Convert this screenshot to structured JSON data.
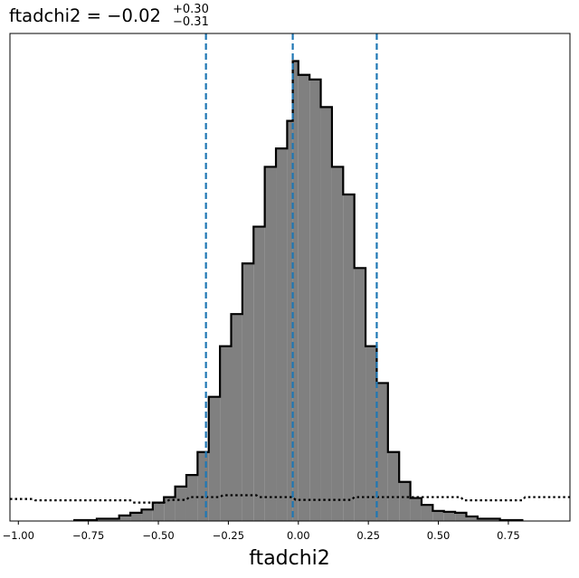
{
  "chart_data": {
    "type": "histogram",
    "title": {
      "prefix": "ftadchi2 = ",
      "value": "−0.02",
      "upper": "+0.30",
      "lower": "−0.31"
    },
    "xlabel": "ftadchi2",
    "ylabel": "",
    "xlim": [
      -1.03,
      0.97
    ],
    "ylim": [
      0,
      1.06
    ],
    "xticks": [
      -1.0,
      -0.75,
      -0.5,
      -0.25,
      0.0,
      0.25,
      0.5,
      0.75
    ],
    "xtick_labels": [
      "−1.00",
      "−0.75",
      "−0.50",
      "−0.25",
      "0.00",
      "0.25",
      "0.50",
      "0.75"
    ],
    "yticks_visible": false,
    "histogram": {
      "bin_edges": [
        -0.8,
        -0.72,
        -0.64,
        -0.6,
        -0.56,
        -0.52,
        -0.48,
        -0.44,
        -0.4,
        -0.36,
        -0.32,
        -0.28,
        -0.24,
        -0.2,
        -0.16,
        -0.12,
        -0.08,
        -0.04,
        -0.02,
        0.0,
        0.04,
        0.08,
        0.12,
        0.16,
        0.2,
        0.24,
        0.28,
        0.32,
        0.36,
        0.4,
        0.44,
        0.48,
        0.52,
        0.56,
        0.6,
        0.64,
        0.72,
        0.8
      ],
      "heights": [
        0.002,
        0.005,
        0.012,
        0.018,
        0.025,
        0.04,
        0.052,
        0.075,
        0.1,
        0.15,
        0.27,
        0.38,
        0.45,
        0.56,
        0.64,
        0.77,
        0.81,
        0.87,
        1.0,
        0.97,
        0.96,
        0.9,
        0.77,
        0.71,
        0.55,
        0.38,
        0.3,
        0.15,
        0.085,
        0.05,
        0.035,
        0.022,
        0.02,
        0.018,
        0.01,
        0.005,
        0.002
      ],
      "fill_color": "#808080",
      "edge_color": "#000000"
    },
    "prior": {
      "style": "dotted",
      "color": "#000000",
      "x": [
        -1.03,
        -0.95,
        -0.94,
        -0.6,
        -0.59,
        -0.48,
        -0.46,
        -0.4,
        -0.39,
        -0.28,
        -0.27,
        -0.15,
        -0.14,
        -0.02,
        -0.01,
        0.19,
        0.2,
        0.58,
        0.59,
        0.8,
        0.81,
        0.97
      ],
      "y": [
        0.048,
        0.048,
        0.045,
        0.045,
        0.04,
        0.04,
        0.046,
        0.046,
        0.052,
        0.052,
        0.056,
        0.056,
        0.052,
        0.052,
        0.046,
        0.046,
        0.052,
        0.052,
        0.045,
        0.045,
        0.052,
        0.052
      ]
    },
    "vlines": {
      "x": [
        -0.33,
        -0.02,
        0.28
      ],
      "color": "#1f77b4",
      "style": "dashed"
    }
  }
}
